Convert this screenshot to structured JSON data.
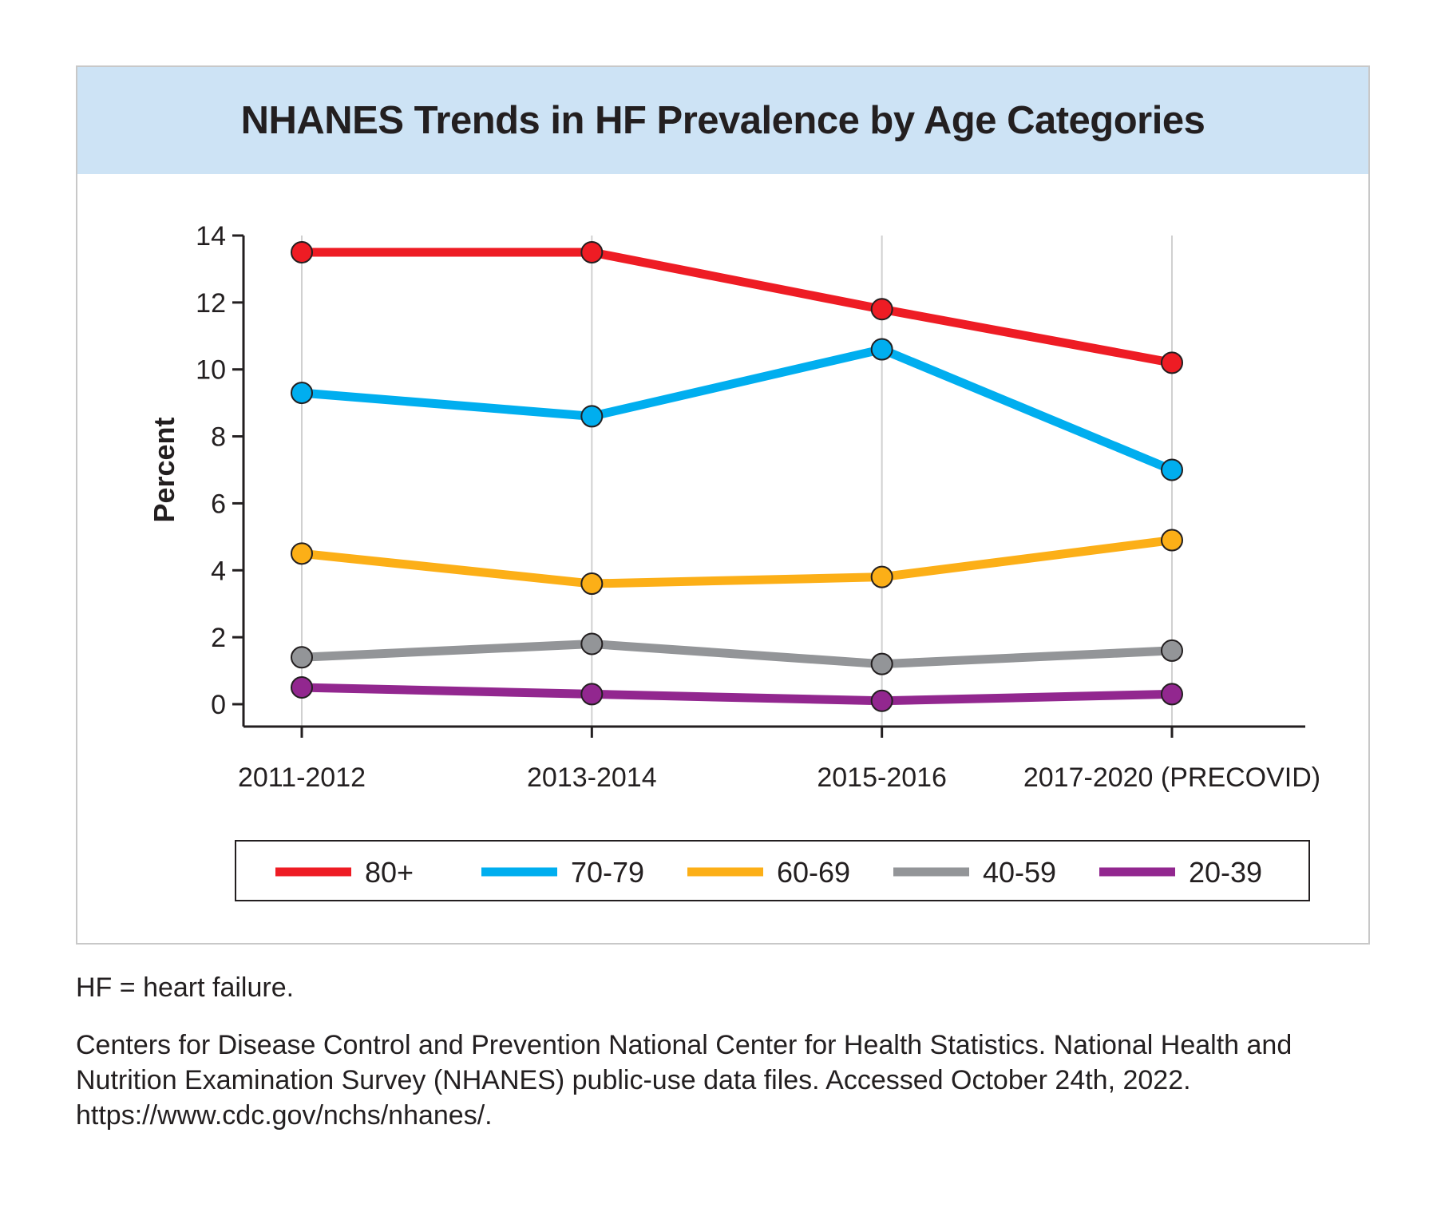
{
  "header": {
    "title": "NHANES Trends in HF Prevalence by Age Categories"
  },
  "footnotes": {
    "abbreviation": "HF = heart failure.",
    "source": "Centers for Disease Control and Prevention National Center for Health Statistics. National Health and Nutrition Examination Survey (NHANES) public-use data files. Accessed October 24th, 2022. https://www.cdc.gov/nchs/nhanes/."
  },
  "chart_data": {
    "type": "line",
    "title": "NHANES Trends in HF Prevalence by Age Categories",
    "xlabel": "",
    "ylabel": "Percent",
    "categories": [
      "2011-2012",
      "2013-2014",
      "2015-2016",
      "2017-2020 (PRECOVID)"
    ],
    "ylim": [
      0,
      14
    ],
    "yticks": [
      0,
      2,
      4,
      6,
      8,
      10,
      12,
      14
    ],
    "grid": "vertical",
    "legend_placement": "bottom",
    "series": [
      {
        "name": "80+",
        "color": "#ee1c24",
        "values": [
          13.5,
          13.5,
          11.8,
          10.2
        ]
      },
      {
        "name": "70-79",
        "color": "#00aeef",
        "values": [
          9.3,
          8.6,
          10.6,
          7.0
        ]
      },
      {
        "name": "60-69",
        "color": "#fcaf17",
        "values": [
          4.5,
          3.6,
          3.8,
          4.9
        ]
      },
      {
        "name": "40-59",
        "color": "#939598",
        "values": [
          1.4,
          1.8,
          1.2,
          1.6
        ]
      },
      {
        "name": "20-39",
        "color": "#92278f",
        "values": [
          0.5,
          0.3,
          0.1,
          0.3
        ]
      }
    ]
  }
}
